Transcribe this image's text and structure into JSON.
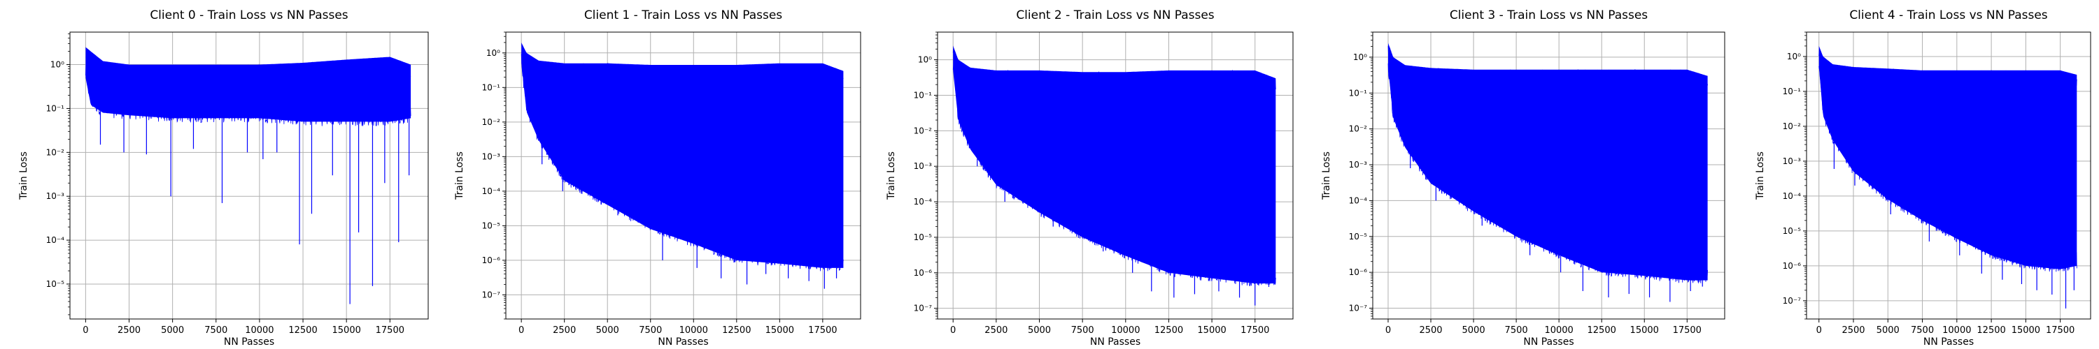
{
  "figure": {
    "background": "#ffffff"
  },
  "chart_data": [
    {
      "type": "line",
      "title": "Client 0 - Train Loss vs NN Passes",
      "xlabel": "NN Passes",
      "ylabel": "Train Loss",
      "xscale": "linear",
      "yscale": "log",
      "xlim": [
        -900,
        19700
      ],
      "ylim": [
        1.6e-06,
        5.5
      ],
      "xticks": [
        0,
        2500,
        5000,
        7500,
        10000,
        12500,
        15000,
        17500
      ],
      "xtick_labels": [
        "0",
        "2500",
        "5000",
        "7500",
        "10000",
        "12500",
        "15000",
        "17500"
      ],
      "yticks": [
        1e-05,
        0.0001,
        0.001,
        0.01,
        0.1,
        1
      ],
      "ytick_labels": [
        "10⁻⁵",
        "10⁻⁴",
        "10⁻³",
        "10⁻²",
        "10⁻¹",
        "10⁰"
      ],
      "grid": true,
      "series": [
        {
          "color": "#0000ff",
          "points_x": [
            0,
            300,
            1000,
            2500,
            5000,
            7500,
            10000,
            12500,
            15000,
            17500,
            18700
          ],
          "upper": [
            2.5,
            2.0,
            1.2,
            1.0,
            1.0,
            1.0,
            1.0,
            1.1,
            1.3,
            1.5,
            1.0
          ],
          "lower": [
            0.5,
            0.12,
            0.08,
            0.07,
            0.06,
            0.06,
            0.06,
            0.05,
            0.05,
            0.05,
            0.06
          ],
          "spikes": [
            [
              850,
              0.015
            ],
            [
              2200,
              0.01
            ],
            [
              3500,
              0.009
            ],
            [
              4900,
              0.001
            ],
            [
              6200,
              0.012
            ],
            [
              7850,
              0.0007
            ],
            [
              9300,
              0.01
            ],
            [
              10200,
              0.007
            ],
            [
              11000,
              0.01
            ],
            [
              12300,
              8e-05
            ],
            [
              13000,
              0.0004
            ],
            [
              14200,
              0.003
            ],
            [
              15200,
              3.5e-06
            ],
            [
              15700,
              0.00015
            ],
            [
              16500,
              9e-06
            ],
            [
              17200,
              0.002
            ],
            [
              18000,
              9e-05
            ],
            [
              18600,
              0.003
            ]
          ]
        }
      ]
    },
    {
      "type": "line",
      "title": "Client 1 - Train Loss vs NN Passes",
      "xlabel": "NN Passes",
      "ylabel": "Train Loss",
      "xscale": "linear",
      "yscale": "log",
      "xlim": [
        -900,
        19700
      ],
      "ylim": [
        2e-08,
        4
      ],
      "xticks": [
        0,
        2500,
        5000,
        7500,
        10000,
        12500,
        15000,
        17500
      ],
      "xtick_labels": [
        "0",
        "2500",
        "5000",
        "7500",
        "10000",
        "12500",
        "15000",
        "17500"
      ],
      "yticks": [
        1e-07,
        1e-06,
        1e-05,
        0.0001,
        0.001,
        0.01,
        0.1,
        1
      ],
      "ytick_labels": [
        "10⁻⁷",
        "10⁻⁶",
        "10⁻⁵",
        "10⁻⁴",
        "10⁻³",
        "10⁻²",
        "10⁻¹",
        "10⁰"
      ],
      "grid": true,
      "series": [
        {
          "color": "#0000ff",
          "points_x": [
            0,
            300,
            1000,
            2500,
            5000,
            7500,
            10000,
            12500,
            15000,
            17500,
            18700
          ],
          "upper": [
            2.0,
            1.0,
            0.6,
            0.5,
            0.5,
            0.45,
            0.45,
            0.45,
            0.5,
            0.5,
            0.3
          ],
          "lower": [
            0.5,
            0.02,
            0.003,
            0.0002,
            4e-05,
            8e-06,
            3e-06,
            1e-06,
            8e-07,
            6e-07,
            6e-07
          ],
          "spikes": [
            [
              1200,
              0.0006
            ],
            [
              2400,
              0.0001
            ],
            [
              5600,
              2e-05
            ],
            [
              8200,
              1e-06
            ],
            [
              10200,
              6e-07
            ],
            [
              11600,
              3e-07
            ],
            [
              13100,
              2e-07
            ],
            [
              14200,
              4e-07
            ],
            [
              15500,
              3e-07
            ],
            [
              16700,
              2.5e-07
            ],
            [
              17600,
              1.5e-07
            ],
            [
              18300,
              3e-07
            ]
          ]
        }
      ]
    },
    {
      "type": "line",
      "title": "Client 2 - Train Loss vs NN Passes",
      "xlabel": "NN Passes",
      "ylabel": "Train Loss",
      "xscale": "linear",
      "yscale": "log",
      "xlim": [
        -900,
        19700
      ],
      "ylim": [
        5e-08,
        6
      ],
      "xticks": [
        0,
        2500,
        5000,
        7500,
        10000,
        12500,
        15000,
        17500
      ],
      "xtick_labels": [
        "0",
        "2500",
        "5000",
        "7500",
        "10000",
        "12500",
        "15000",
        "17500"
      ],
      "yticks": [
        1e-07,
        1e-06,
        1e-05,
        0.0001,
        0.001,
        0.01,
        0.1,
        1
      ],
      "ytick_labels": [
        "10⁻⁷",
        "10⁻⁶",
        "10⁻⁵",
        "10⁻⁴",
        "10⁻³",
        "10⁻²",
        "10⁻¹",
        "10⁰"
      ],
      "grid": true,
      "series": [
        {
          "color": "#0000ff",
          "points_x": [
            0,
            300,
            1000,
            2500,
            5000,
            7500,
            10000,
            12500,
            15000,
            17500,
            18700
          ],
          "upper": [
            2.5,
            1.0,
            0.6,
            0.5,
            0.5,
            0.45,
            0.45,
            0.5,
            0.5,
            0.5,
            0.3
          ],
          "lower": [
            0.5,
            0.02,
            0.003,
            0.0003,
            5e-05,
            1e-05,
            3e-06,
            1e-06,
            7e-07,
            5e-07,
            5e-07
          ],
          "spikes": [
            [
              1400,
              0.001
            ],
            [
              3000,
              0.0001
            ],
            [
              5800,
              2e-05
            ],
            [
              8700,
              4e-06
            ],
            [
              10400,
              1e-06
            ],
            [
              11500,
              3e-07
            ],
            [
              12800,
              2e-07
            ],
            [
              14000,
              2.5e-07
            ],
            [
              15400,
              3e-07
            ],
            [
              16600,
              2e-07
            ],
            [
              17500,
              1.2e-07
            ],
            [
              18300,
              4e-07
            ]
          ]
        }
      ]
    },
    {
      "type": "line",
      "title": "Client 3 - Train Loss vs NN Passes",
      "xlabel": "NN Passes",
      "ylabel": "Train Loss",
      "xscale": "linear",
      "yscale": "log",
      "xlim": [
        -900,
        19700
      ],
      "ylim": [
        5e-08,
        5
      ],
      "xticks": [
        0,
        2500,
        5000,
        7500,
        10000,
        12500,
        15000,
        17500
      ],
      "xtick_labels": [
        "0",
        "2500",
        "5000",
        "7500",
        "10000",
        "12500",
        "15000",
        "17500"
      ],
      "yticks": [
        1e-07,
        1e-06,
        1e-05,
        0.0001,
        0.001,
        0.01,
        0.1,
        1
      ],
      "ytick_labels": [
        "10⁻⁷",
        "10⁻⁶",
        "10⁻⁵",
        "10⁻⁴",
        "10⁻³",
        "10⁻²",
        "10⁻¹",
        "10⁰"
      ],
      "grid": true,
      "series": [
        {
          "color": "#0000ff",
          "points_x": [
            0,
            300,
            1000,
            2500,
            5000,
            7500,
            10000,
            12500,
            15000,
            17500,
            18700
          ],
          "upper": [
            2.5,
            1.0,
            0.6,
            0.5,
            0.45,
            0.45,
            0.45,
            0.45,
            0.45,
            0.45,
            0.3
          ],
          "lower": [
            0.5,
            0.02,
            0.003,
            0.0003,
            5e-05,
            1e-05,
            3e-06,
            1e-06,
            8e-07,
            6e-07,
            6e-07
          ],
          "spikes": [
            [
              1300,
              0.0008
            ],
            [
              2800,
              0.0001
            ],
            [
              5500,
              2e-05
            ],
            [
              8300,
              3e-06
            ],
            [
              10100,
              1e-06
            ],
            [
              11400,
              3e-07
            ],
            [
              12900,
              2e-07
            ],
            [
              14100,
              2.5e-07
            ],
            [
              15300,
              2e-07
            ],
            [
              16500,
              1.5e-07
            ],
            [
              17700,
              3e-07
            ],
            [
              18400,
              4e-07
            ]
          ]
        }
      ]
    },
    {
      "type": "line",
      "title": "Client 4 - Train Loss vs NN Passes",
      "xlabel": "NN Passes",
      "ylabel": "Train Loss",
      "xscale": "linear",
      "yscale": "log",
      "xlim": [
        -900,
        19700
      ],
      "ylim": [
        3e-08,
        5
      ],
      "xticks": [
        0,
        2500,
        5000,
        7500,
        10000,
        12500,
        15000,
        17500
      ],
      "xtick_labels": [
        "0",
        "2500",
        "5000",
        "7500",
        "10000",
        "12500",
        "15000",
        "17500"
      ],
      "yticks": [
        1e-07,
        1e-06,
        1e-05,
        0.0001,
        0.001,
        0.01,
        0.1,
        1
      ],
      "ytick_labels": [
        "10⁻⁷",
        "10⁻⁶",
        "10⁻⁵",
        "10⁻⁴",
        "10⁻³",
        "10⁻²",
        "10⁻¹",
        "10⁰"
      ],
      "grid": true,
      "series": [
        {
          "color": "#0000ff",
          "points_x": [
            0,
            300,
            1000,
            2500,
            5000,
            7500,
            10000,
            12500,
            15000,
            17500,
            18700
          ],
          "upper": [
            2.0,
            1.0,
            0.6,
            0.5,
            0.45,
            0.4,
            0.4,
            0.4,
            0.4,
            0.4,
            0.3
          ],
          "lower": [
            0.5,
            0.02,
            0.004,
            0.0005,
            8e-05,
            2e-05,
            6e-06,
            2e-06,
            1e-06,
            8e-07,
            1e-06
          ],
          "spikes": [
            [
              1100,
              0.0006
            ],
            [
              2600,
              0.0002
            ],
            [
              5200,
              3e-05
            ],
            [
              8000,
              5e-06
            ],
            [
              10200,
              2e-06
            ],
            [
              11800,
              6e-07
            ],
            [
              13300,
              4e-07
            ],
            [
              14700,
              3e-07
            ],
            [
              15800,
              2e-07
            ],
            [
              16900,
              1.5e-07
            ],
            [
              17900,
              6e-08
            ],
            [
              18500,
              2e-07
            ]
          ]
        }
      ]
    }
  ]
}
